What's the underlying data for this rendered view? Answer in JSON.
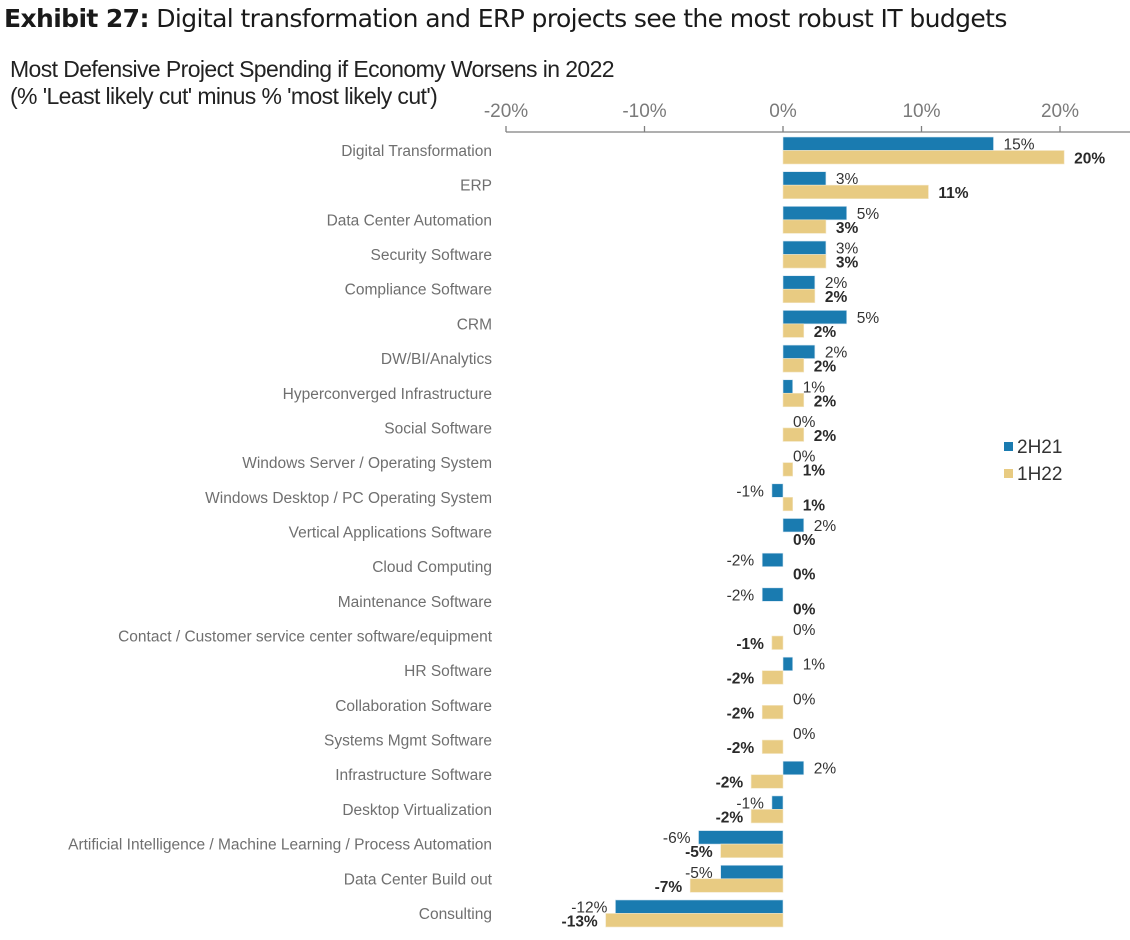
{
  "header": {
    "exhibit_label": "Exhibit 27:",
    "exhibit_title": "Digital transformation and ERP projects see the most robust IT budgets"
  },
  "chart_data": {
    "type": "bar",
    "orientation": "horizontal",
    "title": "Most Defensive Project Spending if Economy Worsens in 2022",
    "subtitle": "(% 'Least likely cut' minus % 'most likely cut')",
    "xlabel": "",
    "ylabel": "",
    "xlim": [
      -20,
      25
    ],
    "x_ticks": [
      -20,
      -10,
      0,
      10,
      20
    ],
    "x_tick_labels": [
      "-20%",
      "-10%",
      "0%",
      "10%",
      "20%"
    ],
    "x_axis_position": "top",
    "grid": false,
    "legend_position": "right",
    "categories": [
      "Digital Transformation",
      "ERP",
      "Data Center Automation",
      "Security Software",
      "Compliance Software",
      "CRM",
      "DW/BI/Analytics",
      "Hyperconverged Infrastructure",
      "Social Software",
      "Windows Server / Operating System",
      "Windows Desktop / PC Operating System",
      "Vertical Applications Software",
      "Cloud Computing",
      "Maintenance Software",
      "Contact / Customer service center software/equipment",
      "HR Software",
      "Collaboration Software",
      "Systems Mgmt Software",
      "Infrastructure Software",
      "Desktop Virtualization",
      "Artificial Intelligence / Machine Learning / Process Automation",
      "Data Center Build out",
      "Consulting"
    ],
    "series": [
      {
        "name": "2H21",
        "color": "#1a7bb0",
        "values": [
          15.2,
          3.1,
          4.6,
          3.1,
          2.3,
          4.6,
          2.3,
          0.7,
          0,
          0,
          -0.8,
          1.5,
          -1.5,
          -1.5,
          0,
          0.7,
          0,
          0,
          1.5,
          -0.8,
          -6.1,
          -4.5,
          -12.1
        ],
        "labels": [
          "15%",
          "3%",
          "5%",
          "3%",
          "2%",
          "5%",
          "2%",
          "1%",
          "0%",
          "0%",
          "-1%",
          "2%",
          "-2%",
          "-2%",
          "0%",
          "1%",
          "0%",
          "0%",
          "2%",
          "-1%",
          "-6%",
          "-5%",
          "-12%"
        ]
      },
      {
        "name": "1H22",
        "color": "#e8cb82",
        "values": [
          20.3,
          10.5,
          3.1,
          3.1,
          2.3,
          1.5,
          1.5,
          1.5,
          1.5,
          0.7,
          0.7,
          0,
          0,
          0,
          -0.8,
          -1.5,
          -1.5,
          -1.5,
          -2.3,
          -2.3,
          -4.5,
          -6.7,
          -12.8
        ],
        "labels": [
          "20%",
          "11%",
          "3%",
          "3%",
          "2%",
          "2%",
          "2%",
          "2%",
          "2%",
          "1%",
          "1%",
          "0%",
          "0%",
          "0%",
          "-1%",
          "-2%",
          "-2%",
          "-2%",
          "-2%",
          "-2%",
          "-5%",
          "-7%",
          "-13%"
        ]
      }
    ]
  }
}
